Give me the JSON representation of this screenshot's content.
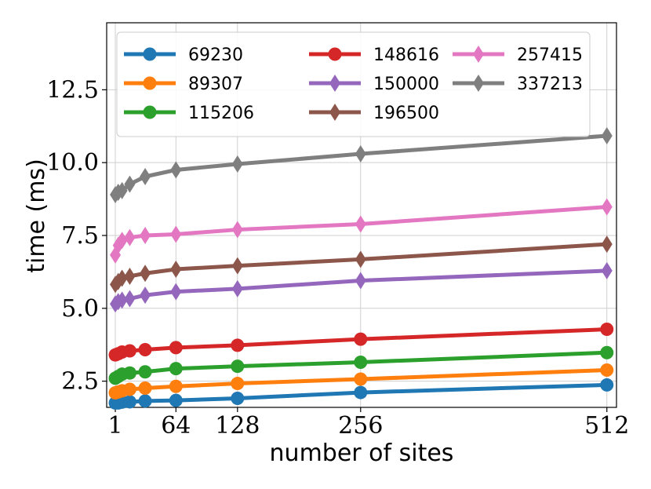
{
  "chart_data": {
    "type": "line",
    "title": "",
    "xlabel": "number of sites",
    "ylabel": "time (ms)",
    "xlim": [
      -8,
      522
    ],
    "ylim": [
      1.6,
      14.8
    ],
    "xticks": [
      1,
      64,
      128,
      256,
      512
    ],
    "xtick_labels": [
      "1",
      "64",
      "128",
      "256",
      "512"
    ],
    "yticks": [
      2.5,
      5.0,
      7.5,
      10.0,
      12.5
    ],
    "ytick_labels": [
      "2.5",
      "5.0",
      "7.5",
      "10.0",
      "12.5"
    ],
    "grid": true,
    "legend_position": "top",
    "legend_columns": 3,
    "x": [
      1,
      4,
      8,
      16,
      32,
      64,
      128,
      256,
      512
    ],
    "series": [
      {
        "name": "69230",
        "color": "#1f77b4",
        "marker": "circle",
        "values": [
          1.75,
          1.75,
          1.78,
          1.79,
          1.82,
          1.84,
          1.91,
          2.11,
          2.37
        ]
      },
      {
        "name": "89307",
        "color": "#ff7f0e",
        "marker": "circle",
        "values": [
          2.1,
          2.13,
          2.17,
          2.22,
          2.26,
          2.32,
          2.42,
          2.57,
          2.88
        ]
      },
      {
        "name": "115206",
        "color": "#2ca02c",
        "marker": "circle",
        "values": [
          2.6,
          2.66,
          2.74,
          2.78,
          2.82,
          2.93,
          3.01,
          3.15,
          3.48
        ]
      },
      {
        "name": "148616",
        "color": "#d62728",
        "marker": "circle",
        "values": [
          3.4,
          3.44,
          3.5,
          3.54,
          3.58,
          3.65,
          3.73,
          3.94,
          4.28
        ]
      },
      {
        "name": "150000",
        "color": "#9467bd",
        "marker": "diamond",
        "values": [
          5.15,
          5.23,
          5.28,
          5.33,
          5.45,
          5.57,
          5.67,
          5.95,
          6.29
        ]
      },
      {
        "name": "196500",
        "color": "#8c564b",
        "marker": "diamond",
        "values": [
          5.82,
          5.92,
          6.03,
          6.1,
          6.2,
          6.34,
          6.46,
          6.68,
          7.2
        ]
      },
      {
        "name": "257415",
        "color": "#e377c2",
        "marker": "diamond",
        "values": [
          6.83,
          7.16,
          7.33,
          7.43,
          7.5,
          7.54,
          7.7,
          7.89,
          8.48
        ]
      },
      {
        "name": "337213",
        "color": "#7f7f7f",
        "marker": "diamond",
        "values": [
          8.9,
          8.98,
          9.04,
          9.26,
          9.52,
          9.75,
          9.95,
          10.3,
          10.92
        ]
      }
    ]
  }
}
